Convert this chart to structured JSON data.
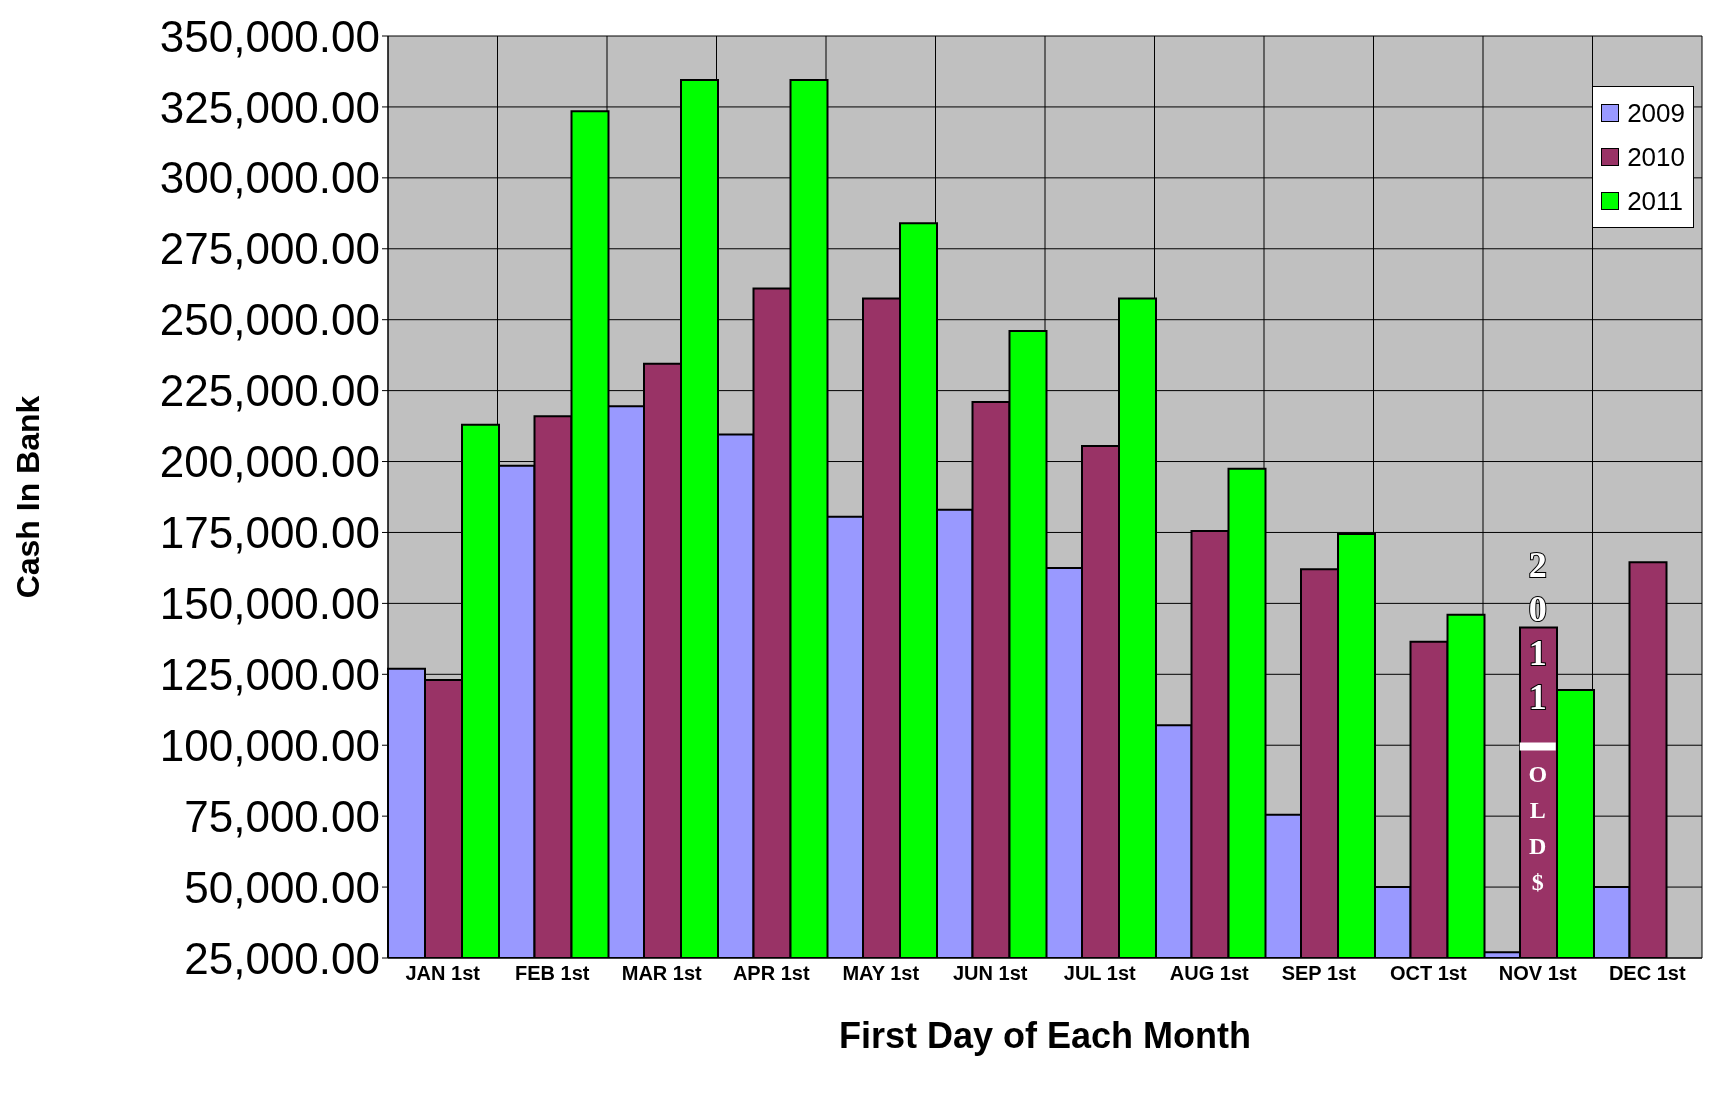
{
  "chart_data": {
    "type": "bar",
    "xlabel": "First Day of Each Month",
    "ylabel": "Cash In Bank",
    "categories": [
      "JAN 1st",
      "FEB 1st",
      "MAR 1st",
      "APR 1st",
      "MAY 1st",
      "JUN 1st",
      "JUL 1st",
      "AUG 1st",
      "SEP 1st",
      "OCT 1st",
      "NOV 1st",
      "DEC 1st"
    ],
    "series": [
      {
        "name": "2009",
        "color": "#9999ff",
        "values": [
          127000,
          198500,
          219500,
          209500,
          180500,
          183000,
          162500,
          107000,
          75500,
          50000,
          27000,
          50000
        ]
      },
      {
        "name": "2010",
        "color": "#993366",
        "values": [
          123000,
          216000,
          234500,
          261000,
          257500,
          221000,
          205500,
          175500,
          162000,
          136500,
          141500,
          164500
        ]
      },
      {
        "name": "2011",
        "color": "#00ff00",
        "values": [
          213000,
          323500,
          334500,
          334500,
          284000,
          246000,
          257500,
          197500,
          174500,
          146000,
          119500,
          null
        ]
      }
    ],
    "ylim": [
      25000,
      350000
    ],
    "yticks": [
      {
        "value": 25000,
        "label": "25,000.00"
      },
      {
        "value": 50000,
        "label": "50,000.00"
      },
      {
        "value": 75000,
        "label": "75,000.00"
      },
      {
        "value": 100000,
        "label": "100,000.00"
      },
      {
        "value": 125000,
        "label": "125,000.00"
      },
      {
        "value": 150000,
        "label": "150,000.00"
      },
      {
        "value": 175000,
        "label": "175,000.00"
      },
      {
        "value": 200000,
        "label": "200,000.00"
      },
      {
        "value": 225000,
        "label": "225,000.00"
      },
      {
        "value": 250000,
        "label": "250,000.00"
      },
      {
        "value": 275000,
        "label": "275,000.00"
      },
      {
        "value": 300000,
        "label": "300,000.00"
      },
      {
        "value": 325000,
        "label": "325,000.00"
      },
      {
        "value": 350000,
        "label": "350,000.00"
      }
    ],
    "grid": true,
    "legend": "top right",
    "annotations": [
      "2011",
      "OLD $"
    ]
  }
}
